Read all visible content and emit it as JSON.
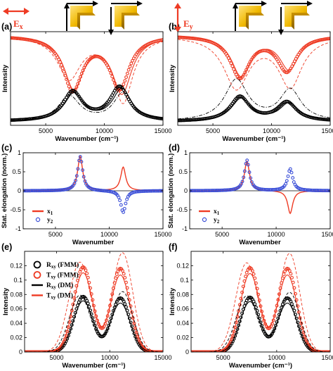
{
  "figure": {
    "panels": [
      {
        "label": "(a)",
        "pol": "E",
        "pol_sub": "x",
        "pol_dir": "horizontal"
      },
      {
        "label": "(b)",
        "pol": "E",
        "pol_sub": "y",
        "pol_dir": "vertical"
      },
      {
        "label": "(c)"
      },
      {
        "label": "(d)"
      },
      {
        "label": "(e)"
      },
      {
        "label": "(f)"
      }
    ],
    "legend_cd": [
      {
        "text": "x",
        "sub": "1",
        "marker": "line",
        "color": "#ee3b24"
      },
      {
        "text": "y",
        "sub": "2",
        "marker": "circle",
        "color": "#3b4fd8"
      }
    ],
    "legend_e": [
      {
        "text": "R",
        "sub": "xy",
        "tail": " (FMM)",
        "marker": "circle",
        "color": "#000000"
      },
      {
        "text": "T",
        "sub": "xy",
        "tail": " (FMM)",
        "marker": "circle",
        "color": "#ee3b24"
      },
      {
        "text": "R",
        "sub": "xy",
        "tail": " (DM)",
        "marker": "line",
        "color": "#000000"
      },
      {
        "text": "T",
        "sub": "xy",
        "tail": " (DM)",
        "marker": "line",
        "color": "#ee3b24"
      }
    ]
  },
  "chart_data": [
    {
      "id": "a",
      "type": "line",
      "xlabel": "Wavenumber (cm⁻¹)",
      "ylabel": "Intensity",
      "xlim": [
        2000,
        15000
      ],
      "ylim": [
        0,
        1
      ],
      "xticks": [
        5000,
        10000,
        15000
      ],
      "yticks": [],
      "series": [
        {
          "color": "#ee3b24",
          "style": "circles",
          "model": "dips",
          "base": 0.96,
          "peaks": [
            [
              7300,
              0.57,
              1000
            ],
            [
              11300,
              0.55,
              1000
            ]
          ]
        },
        {
          "color": "#ee3b24",
          "style": "solid",
          "model": "dips",
          "base": 0.96,
          "peaks": [
            [
              7400,
              0.55,
              1000
            ],
            [
              11500,
              0.6,
              1000
            ]
          ]
        },
        {
          "color": "#ee3b24",
          "style": "dashed",
          "model": "dips",
          "base": 0.96,
          "peaks": [
            [
              7000,
              0.45,
              1200
            ],
            [
              11600,
              0.7,
              1000
            ]
          ]
        },
        {
          "color": "#000000",
          "style": "circles",
          "model": "peaks",
          "base": 0.04,
          "peaks": [
            [
              7300,
              0.31,
              1000
            ],
            [
              11300,
              0.36,
              1000
            ]
          ]
        },
        {
          "color": "#000000",
          "style": "solid",
          "model": "peaks",
          "base": 0.04,
          "peaks": [
            [
              7400,
              0.29,
              1000
            ],
            [
              11500,
              0.34,
              1000
            ]
          ]
        },
        {
          "color": "#000000",
          "style": "dashdot",
          "model": "peaks",
          "base": 0.04,
          "peaks": [
            [
              7000,
              0.27,
              1100
            ],
            [
              11600,
              0.3,
              1000
            ]
          ]
        }
      ]
    },
    {
      "id": "b",
      "type": "line",
      "xlabel": "Wavenumber (cm⁻¹)",
      "ylabel": "Intensity",
      "xlim": [
        2000,
        15000
      ],
      "ylim": [
        0,
        1
      ],
      "xticks": [
        5000,
        10000,
        15000
      ],
      "yticks": [],
      "series": [
        {
          "color": "#ee3b24",
          "style": "circles",
          "model": "dips",
          "base": 0.96,
          "peaks": [
            [
              7300,
              0.44,
              1000
            ],
            [
              11300,
              0.37,
              1000
            ]
          ]
        },
        {
          "color": "#ee3b24",
          "style": "solid",
          "model": "dips",
          "base": 0.96,
          "peaks": [
            [
              7400,
              0.42,
              1000
            ],
            [
              11500,
              0.35,
              1000
            ]
          ]
        },
        {
          "color": "#ee3b24",
          "style": "dashed",
          "model": "dips",
          "base": 0.96,
          "peaks": [
            [
              7000,
              0.55,
              1300
            ],
            [
              11600,
              0.53,
              1200
            ]
          ]
        },
        {
          "color": "#000000",
          "style": "circles",
          "model": "peaks",
          "base": 0.04,
          "peaks": [
            [
              7300,
              0.26,
              1000
            ],
            [
              11300,
              0.2,
              1000
            ]
          ]
        },
        {
          "color": "#000000",
          "style": "solid",
          "model": "peaks",
          "base": 0.04,
          "peaks": [
            [
              7400,
              0.24,
              1000
            ],
            [
              11500,
              0.19,
              1000
            ]
          ]
        },
        {
          "color": "#000000",
          "style": "dashdot",
          "model": "peaks",
          "base": 0.04,
          "peaks": [
            [
              7000,
              0.44,
              1200
            ],
            [
              11600,
              0.33,
              1100
            ]
          ]
        }
      ]
    },
    {
      "id": "c",
      "type": "line",
      "xlabel": "Wavenumber",
      "ylabel": "Stat. elongation (norm.)",
      "xlim": [
        2000,
        15000
      ],
      "ylim": [
        -1,
        1
      ],
      "xticks": [
        5000,
        10000,
        15000
      ],
      "yticks": [
        -1,
        -0.5,
        0,
        0.5,
        1
      ],
      "series": [
        {
          "name": "x₁",
          "color": "#ee3b24",
          "style": "solid",
          "model": "lorentz",
          "base": 0,
          "peaks": [
            [
              7300,
              0.9,
              280
            ],
            [
              11300,
              0.62,
              280
            ]
          ]
        },
        {
          "name": "y₂",
          "color": "#3b4fd8",
          "style": "circles",
          "model": "lorentz",
          "base": 0,
          "peaks": [
            [
              7300,
              0.9,
              280
            ],
            [
              11300,
              -0.57,
              280
            ]
          ]
        }
      ]
    },
    {
      "id": "d",
      "type": "line",
      "xlabel": "Wavenumber",
      "ylabel": "Stat. elongation (norm.)",
      "xlim": [
        2000,
        15000
      ],
      "ylim": [
        -1,
        1
      ],
      "xticks": [
        5000,
        10000,
        15000
      ],
      "yticks": [
        -1,
        -0.5,
        0,
        0.5,
        1
      ],
      "series": [
        {
          "name": "x₁",
          "color": "#ee3b24",
          "style": "solid",
          "model": "lorentz",
          "base": 0,
          "peaks": [
            [
              7300,
              0.78,
              280
            ],
            [
              11300,
              -0.6,
              280
            ]
          ]
        },
        {
          "name": "y₂",
          "color": "#3b4fd8",
          "style": "circles",
          "model": "lorentz",
          "base": 0,
          "peaks": [
            [
              7300,
              0.8,
              280
            ],
            [
              11300,
              0.57,
              280
            ]
          ]
        }
      ]
    },
    {
      "id": "e",
      "type": "line",
      "xlabel": "Wavenumber (cm⁻¹)",
      "ylabel": "Intensity",
      "xlim": [
        2000,
        15000
      ],
      "ylim": [
        0,
        0.14
      ],
      "xticks": [
        5000,
        10000,
        15000
      ],
      "yticks": [
        0,
        0.02,
        0.04,
        0.06,
        0.08,
        0.1,
        0.12
      ],
      "series": [
        {
          "name": "Rxy (FMM)",
          "color": "#000000",
          "style": "circles",
          "model": "gauss2",
          "base": 0,
          "peaks": [
            [
              7500,
              0.077,
              1250
            ],
            [
              11000,
              0.075,
              1250
            ]
          ]
        },
        {
          "name": "Txy (FMM)",
          "color": "#ee3b24",
          "style": "circles",
          "model": "gauss2",
          "base": 0,
          "peaks": [
            [
              7500,
              0.118,
              1250
            ],
            [
              11000,
              0.116,
              1250
            ]
          ]
        },
        {
          "name": "Rxy (DM)",
          "color": "#000000",
          "style": "solid",
          "model": "gauss2",
          "base": 0,
          "peaks": [
            [
              7500,
              0.071,
              1300
            ],
            [
              11000,
              0.068,
              1300
            ]
          ]
        },
        {
          "name": "Txy (DM)",
          "color": "#ee3b24",
          "style": "solid",
          "model": "gauss2",
          "base": 0,
          "peaks": [
            [
              7500,
              0.11,
              1300
            ],
            [
              11000,
              0.107,
              1300
            ]
          ]
        },
        {
          "color": "#ee3b24",
          "style": "dashed",
          "model": "gauss2",
          "base": 0,
          "peaks": [
            [
              7200,
              0.125,
              1450
            ],
            [
              11200,
              0.138,
              1350
            ]
          ]
        },
        {
          "color": "#000000",
          "style": "dashed",
          "model": "gauss2",
          "base": 0,
          "peaks": [
            [
              7200,
              0.079,
              1400
            ],
            [
              11200,
              0.084,
              1350
            ]
          ]
        }
      ]
    },
    {
      "id": "f",
      "type": "line",
      "xlabel": "Wavenumber (cm⁻¹)",
      "ylabel": "Intensity",
      "xlim": [
        2000,
        15000
      ],
      "ylim": [
        0,
        0.14
      ],
      "xticks": [
        5000,
        10000,
        15000
      ],
      "yticks": [
        0,
        0.02,
        0.04,
        0.06,
        0.08,
        0.1,
        0.12
      ],
      "series": [
        {
          "color": "#000000",
          "style": "circles",
          "model": "gauss2",
          "base": 0,
          "peaks": [
            [
              7500,
              0.076,
              1250
            ],
            [
              11000,
              0.075,
              1250
            ]
          ]
        },
        {
          "color": "#ee3b24",
          "style": "circles",
          "model": "gauss2",
          "base": 0,
          "peaks": [
            [
              7500,
              0.117,
              1250
            ],
            [
              11000,
              0.116,
              1250
            ]
          ]
        },
        {
          "color": "#000000",
          "style": "solid",
          "model": "gauss2",
          "base": 0,
          "peaks": [
            [
              7500,
              0.07,
              1300
            ],
            [
              11000,
              0.068,
              1300
            ]
          ]
        },
        {
          "color": "#ee3b24",
          "style": "solid",
          "model": "gauss2",
          "base": 0,
          "peaks": [
            [
              7500,
              0.109,
              1300
            ],
            [
              11000,
              0.107,
              1300
            ]
          ]
        },
        {
          "color": "#ee3b24",
          "style": "dashed",
          "model": "gauss2",
          "base": 0,
          "peaks": [
            [
              7200,
              0.124,
              1450
            ],
            [
              11200,
              0.137,
              1350
            ]
          ]
        },
        {
          "color": "#000000",
          "style": "dashed",
          "model": "gauss2",
          "base": 0,
          "peaks": [
            [
              7200,
              0.078,
              1400
            ],
            [
              11200,
              0.083,
              1350
            ]
          ]
        }
      ]
    }
  ]
}
